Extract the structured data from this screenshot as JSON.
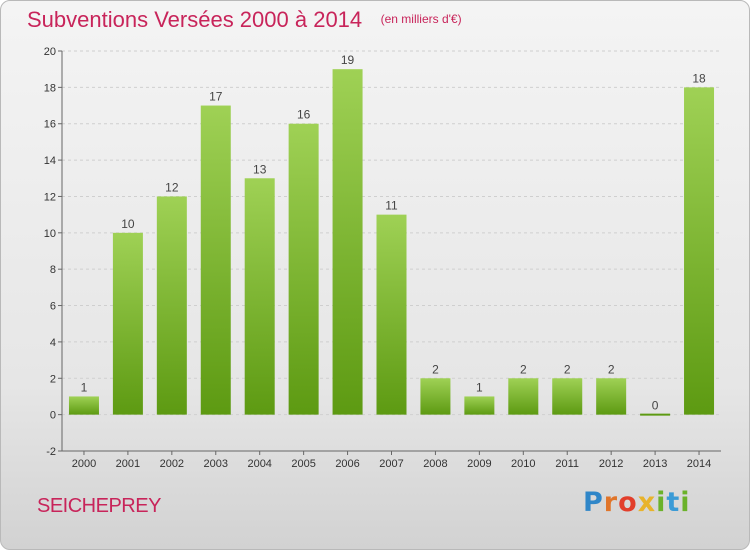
{
  "header": {
    "title": "Subventions Versées 2000 à 2014",
    "unit": "(en milliers d'€)"
  },
  "commune": "SEICHEPREY",
  "logo": [
    "P",
    "r",
    "o",
    "x",
    "i",
    "t",
    "i"
  ],
  "colors": {
    "title": "#c8245a",
    "bar_top": "#9fd155",
    "bar_bottom": "#5d9a12",
    "grid": "#cfcfcf"
  },
  "chart_data": {
    "type": "bar",
    "title": "Subventions Versées 2000 à 2014",
    "subtitle": "(en milliers d'€)",
    "xlabel": "",
    "ylabel": "",
    "categories": [
      "2000",
      "2001",
      "2002",
      "2003",
      "2004",
      "2005",
      "2006",
      "2007",
      "2008",
      "2009",
      "2010",
      "2011",
      "2012",
      "2013",
      "2014"
    ],
    "values": [
      1,
      10,
      12,
      17,
      13,
      16,
      19,
      11,
      2,
      1,
      2,
      2,
      2,
      0,
      18
    ],
    "data_labels": [
      "1",
      "10",
      "12",
      "17",
      "13",
      "16",
      "19",
      "11",
      "2",
      "1",
      "2",
      "2",
      "2",
      "0",
      "18"
    ],
    "ylim": [
      -2,
      20
    ],
    "yticks": [
      -2,
      0,
      2,
      4,
      6,
      8,
      10,
      12,
      14,
      16,
      18,
      20
    ],
    "grid": true,
    "legend": "none"
  }
}
